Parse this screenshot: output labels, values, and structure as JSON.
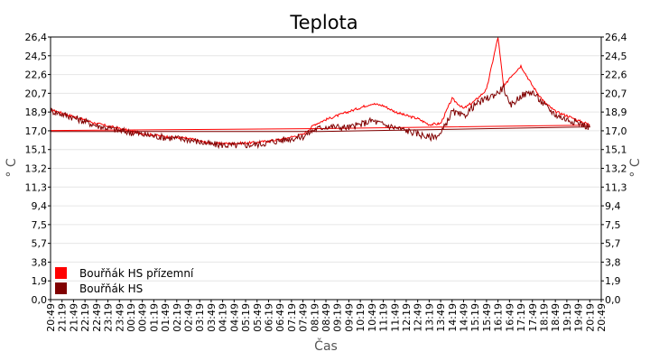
{
  "chart_data": {
    "type": "line",
    "title": "Teplota",
    "xlabel": "Čas",
    "ylabel": "° C",
    "ylim": [
      0,
      26.4
    ],
    "y_ticks": [
      "0,0",
      "1,9",
      "3,8",
      "5,7",
      "7,5",
      "9,4",
      "11,3",
      "13,2",
      "15,1",
      "17,0",
      "18,9",
      "20,7",
      "22,6",
      "24,5",
      "26,4"
    ],
    "x_ticks": [
      "20:49",
      "21:19",
      "21:49",
      "22:19",
      "22:49",
      "23:19",
      "23:49",
      "00:19",
      "00:49",
      "01:19",
      "01:49",
      "02:19",
      "02:49",
      "03:19",
      "03:49",
      "04:19",
      "04:49",
      "05:19",
      "05:49",
      "06:19",
      "06:49",
      "07:19",
      "07:49",
      "08:19",
      "08:49",
      "09:19",
      "09:49",
      "10:19",
      "10:49",
      "11:19",
      "11:49",
      "12:19",
      "12:49",
      "13:19",
      "13:49",
      "14:19",
      "14:49",
      "15:19",
      "15:49",
      "16:19",
      "16:49",
      "17:19",
      "17:49",
      "18:19",
      "18:49",
      "19:19",
      "19:49",
      "20:19",
      "20:49"
    ],
    "grid": true,
    "legend_position": "bottom-left",
    "series": [
      {
        "name": "Bouřňák HS přízemní",
        "color": "#ff0000",
        "x": [
          "20:49",
          "21:49",
          "22:49",
          "23:49",
          "00:49",
          "01:49",
          "02:49",
          "03:49",
          "04:49",
          "05:49",
          "06:49",
          "07:49",
          "08:19",
          "08:49",
          "09:49",
          "10:19",
          "10:49",
          "11:19",
          "11:49",
          "12:19",
          "12:49",
          "13:19",
          "13:49",
          "14:19",
          "14:49",
          "15:19",
          "15:49",
          "16:19",
          "16:34",
          "16:49",
          "17:19",
          "17:49",
          "18:19",
          "18:49",
          "19:19",
          "19:49",
          "20:19",
          "20:49"
        ],
        "values": [
          19.1,
          18.4,
          17.7,
          17.2,
          16.7,
          16.4,
          16.2,
          15.7,
          15.7,
          15.8,
          16.1,
          16.6,
          17.6,
          18.1,
          18.9,
          19.3,
          19.7,
          19.5,
          18.9,
          18.5,
          18.2,
          17.6,
          17.7,
          20.2,
          19.2,
          20.0,
          21.1,
          26.4,
          21.3,
          22.3,
          23.5,
          21.5,
          19.9,
          18.9,
          18.5,
          18.0,
          17.6,
          17.0
        ]
      },
      {
        "name": "Bouřňák HS",
        "color": "#800000",
        "x": [
          "20:49",
          "21:49",
          "22:49",
          "23:49",
          "00:49",
          "01:49",
          "02:49",
          "03:49",
          "04:49",
          "05:49",
          "06:49",
          "07:49",
          "08:19",
          "08:49",
          "09:49",
          "10:19",
          "10:49",
          "11:19",
          "11:49",
          "12:19",
          "12:49",
          "13:19",
          "13:49",
          "14:19",
          "14:49",
          "15:19",
          "15:49",
          "16:19",
          "16:34",
          "16:49",
          "17:19",
          "17:49",
          "18:19",
          "18:49",
          "19:19",
          "19:49",
          "20:19",
          "20:49"
        ],
        "values": [
          19.0,
          18.3,
          17.5,
          17.0,
          16.6,
          16.3,
          16.1,
          15.6,
          15.5,
          15.6,
          16.0,
          16.4,
          17.1,
          17.4,
          17.3,
          17.6,
          18.0,
          17.6,
          17.3,
          17.0,
          16.7,
          16.3,
          16.6,
          18.9,
          18.4,
          19.6,
          20.2,
          20.8,
          21.4,
          19.4,
          20.5,
          20.9,
          19.6,
          18.6,
          18.1,
          17.8,
          17.3,
          16.9
        ]
      }
    ]
  }
}
